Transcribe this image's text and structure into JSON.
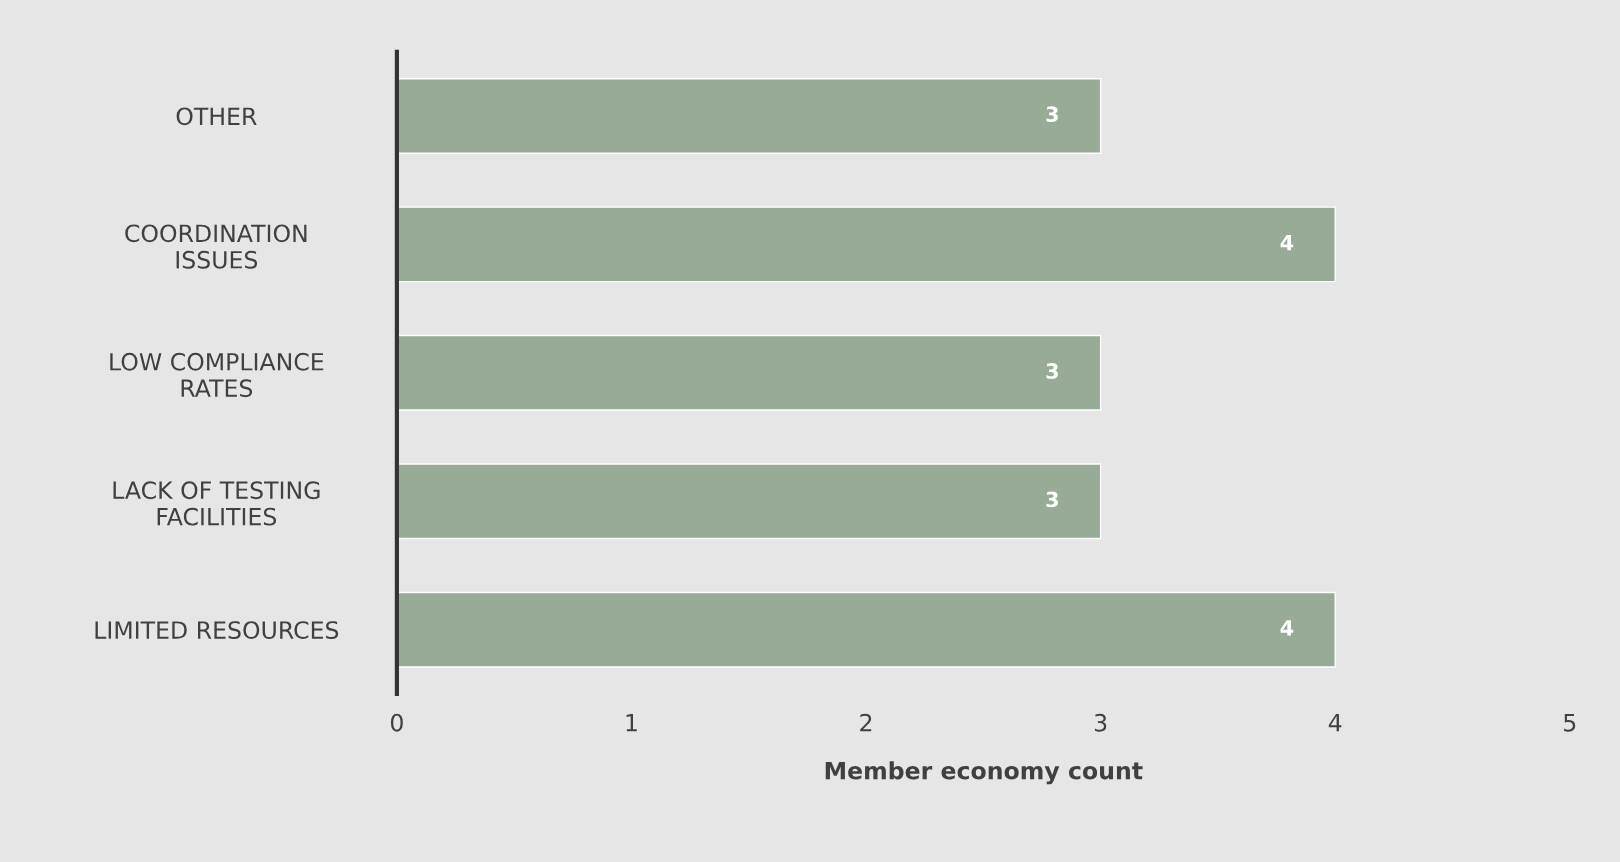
{
  "chart_data": {
    "type": "bar",
    "orientation": "horizontal",
    "xlabel": "Member economy count",
    "categories": [
      "OTHER",
      "COORDINATION\nISSUES",
      "LOW COMPLIANCE\nRATES",
      "LACK OF TESTING\nFACILITIES",
      "LIMITED RESOURCES"
    ],
    "values": [
      3,
      4,
      3,
      3,
      4
    ],
    "color": "#97ab97",
    "xlim": [
      0,
      5
    ],
    "xticks": [
      0,
      1,
      2,
      3,
      4,
      5
    ],
    "grid": false,
    "data_labels": true
  }
}
